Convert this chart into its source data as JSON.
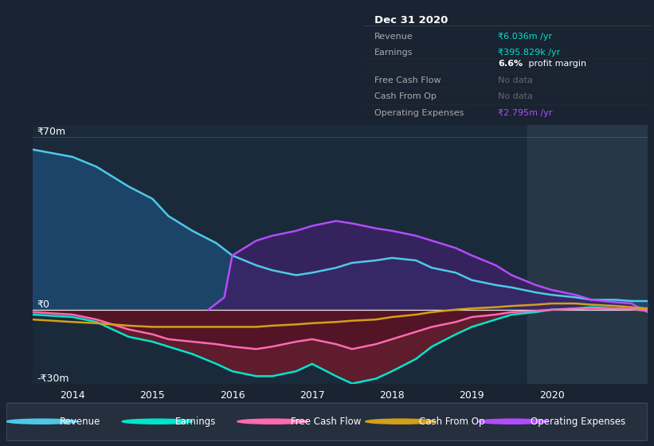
{
  "bg_color": "#1a2332",
  "plot_bg": "#1a2a3a",
  "ylim": [
    -30,
    75
  ],
  "xlim": [
    2013.5,
    2021.2
  ],
  "xticks": [
    2014,
    2015,
    2016,
    2017,
    2018,
    2019,
    2020
  ],
  "ylabel_top": "₹70m",
  "ylabel_zero": "₹0",
  "ylabel_bottom": "-₹30m",
  "highlight_start": 2019.7,
  "series": {
    "revenue": {
      "color": "#4ec9e8",
      "fill_color": "#1e4d7a",
      "label": "Revenue",
      "x": [
        2013.5,
        2014.0,
        2014.3,
        2014.5,
        2014.7,
        2015.0,
        2015.2,
        2015.5,
        2015.8,
        2016.0,
        2016.3,
        2016.5,
        2016.8,
        2017.0,
        2017.3,
        2017.5,
        2017.8,
        2018.0,
        2018.3,
        2018.5,
        2018.8,
        2019.0,
        2019.3,
        2019.5,
        2019.8,
        2020.0,
        2020.3,
        2020.5,
        2020.8,
        2021.0,
        2021.2
      ],
      "y": [
        65,
        62,
        58,
        54,
        50,
        45,
        38,
        32,
        27,
        22,
        18,
        16,
        14,
        15,
        17,
        19,
        20,
        21,
        20,
        17,
        15,
        12,
        10,
        9,
        7,
        6,
        5,
        4,
        4,
        3.5,
        3.5
      ]
    },
    "earnings": {
      "color": "#00e5cc",
      "fill_color": "#6b1a2a",
      "label": "Earnings",
      "x": [
        2013.5,
        2014.0,
        2014.3,
        2014.5,
        2014.7,
        2015.0,
        2015.2,
        2015.5,
        2015.8,
        2016.0,
        2016.3,
        2016.5,
        2016.8,
        2017.0,
        2017.3,
        2017.5,
        2017.8,
        2018.0,
        2018.3,
        2018.5,
        2018.8,
        2019.0,
        2019.3,
        2019.5,
        2019.8,
        2020.0,
        2020.3,
        2020.5,
        2020.8,
        2021.0,
        2021.2
      ],
      "y": [
        -2,
        -3,
        -5,
        -8,
        -11,
        -13,
        -15,
        -18,
        -22,
        -25,
        -27,
        -27,
        -25,
        -22,
        -27,
        -30,
        -28,
        -25,
        -20,
        -15,
        -10,
        -7,
        -4,
        -2,
        -1,
        0,
        0.5,
        1,
        0.5,
        0.3,
        0.3
      ]
    },
    "free_cash_flow": {
      "color": "#ff69b4",
      "fill_color": "#4a1020",
      "label": "Free Cash Flow",
      "x": [
        2013.5,
        2014.0,
        2014.3,
        2014.5,
        2014.7,
        2015.0,
        2015.2,
        2015.5,
        2015.8,
        2016.0,
        2016.3,
        2016.5,
        2016.8,
        2017.0,
        2017.3,
        2017.5,
        2017.8,
        2018.0,
        2018.3,
        2018.5,
        2018.8,
        2019.0,
        2019.3,
        2019.5,
        2019.8,
        2020.0,
        2020.3,
        2020.5,
        2020.8,
        2021.0,
        2021.2
      ],
      "y": [
        -1,
        -2,
        -4,
        -6,
        -8,
        -10,
        -12,
        -13,
        -14,
        -15,
        -16,
        -15,
        -13,
        -12,
        -14,
        -16,
        -14,
        -12,
        -9,
        -7,
        -5,
        -3,
        -2,
        -1,
        -0.5,
        0,
        0.3,
        0.5,
        0.3,
        0.2,
        -0.5
      ]
    },
    "cash_from_op": {
      "color": "#d4a017",
      "label": "Cash From Op",
      "x": [
        2013.5,
        2014.0,
        2014.3,
        2014.5,
        2014.7,
        2015.0,
        2015.2,
        2015.5,
        2015.8,
        2016.0,
        2016.3,
        2016.5,
        2016.8,
        2017.0,
        2017.3,
        2017.5,
        2017.8,
        2018.0,
        2018.3,
        2018.5,
        2018.8,
        2019.0,
        2019.3,
        2019.5,
        2019.8,
        2020.0,
        2020.3,
        2020.5,
        2020.8,
        2021.0,
        2021.2
      ],
      "y": [
        -4,
        -5,
        -5.5,
        -6,
        -6.5,
        -7,
        -7,
        -7,
        -7,
        -7,
        -7,
        -6.5,
        -6,
        -5.5,
        -5,
        -4.5,
        -4,
        -3,
        -2,
        -1,
        0,
        0.5,
        1,
        1.5,
        2,
        2.5,
        2.5,
        2,
        1.5,
        1,
        0.5
      ]
    },
    "operating_expenses": {
      "color": "#b44bff",
      "fill_color": "#3d2266",
      "label": "Operating Expenses",
      "x": [
        2015.7,
        2015.9,
        2016.0,
        2016.3,
        2016.5,
        2016.8,
        2017.0,
        2017.3,
        2017.5,
        2017.8,
        2018.0,
        2018.3,
        2018.5,
        2018.8,
        2019.0,
        2019.3,
        2019.5,
        2019.8,
        2020.0,
        2020.3,
        2020.5,
        2020.8,
        2021.0,
        2021.2
      ],
      "y": [
        0,
        5,
        22,
        28,
        30,
        32,
        34,
        36,
        35,
        33,
        32,
        30,
        28,
        25,
        22,
        18,
        14,
        10,
        8,
        6,
        4,
        3,
        2.5,
        -1
      ]
    }
  },
  "info_box": {
    "title": "Dec 31 2020",
    "rows": [
      {
        "label": "Revenue",
        "value": "₹6.036m /yr",
        "value_color": "#00e5cc"
      },
      {
        "label": "Earnings",
        "value": "₹395.829k /yr",
        "value_color": "#00e5cc"
      },
      {
        "label": "",
        "value": "6.6% profit margin",
        "value_color": "#ffffff",
        "bold_part": "6.6%"
      },
      {
        "label": "Free Cash Flow",
        "value": "No data",
        "value_color": "#666666"
      },
      {
        "label": "Cash From Op",
        "value": "No data",
        "value_color": "#666666"
      },
      {
        "label": "Operating Expenses",
        "value": "₹2.795m /yr",
        "value_color": "#b44bff"
      }
    ]
  },
  "legend_items": [
    {
      "label": "Revenue",
      "color": "#4ec9e8"
    },
    {
      "label": "Earnings",
      "color": "#00e5cc"
    },
    {
      "label": "Free Cash Flow",
      "color": "#ff69b4"
    },
    {
      "label": "Cash From Op",
      "color": "#d4a017"
    },
    {
      "label": "Operating Expenses",
      "color": "#b44bff"
    }
  ]
}
